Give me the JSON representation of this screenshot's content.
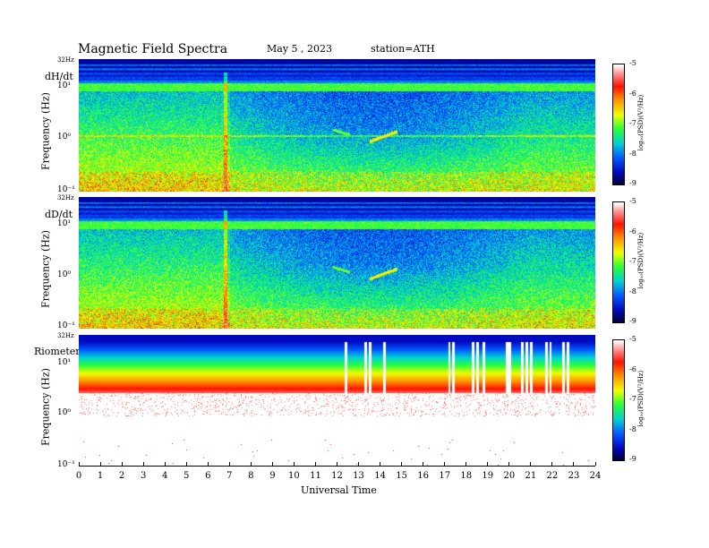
{
  "header": {
    "title": "Magnetic  Field  Spectra",
    "date": "May 5  , 2023",
    "station": "station=ATH"
  },
  "xaxis": {
    "label": "Universal  Time",
    "ticks": [
      "0",
      "1",
      "2",
      "3",
      "4",
      "5",
      "6",
      "7",
      "8",
      "9",
      "10",
      "11",
      "12",
      "13",
      "14",
      "15",
      "16",
      "17",
      "18",
      "19",
      "20",
      "21",
      "22",
      "23",
      "24"
    ]
  },
  "panels": [
    {
      "id": "dhdt",
      "label": "dH/dt",
      "ylabel": "Frequency  (Hz)",
      "top_tick": "32Hz",
      "yticks": [
        "10¹",
        "10⁰",
        "10⁻¹"
      ]
    },
    {
      "id": "dddt",
      "label": "dD/dt",
      "ylabel": "Frequency  (Hz)",
      "top_tick": "32Hz",
      "yticks": [
        "10¹",
        "10⁰",
        "10⁻¹"
      ]
    },
    {
      "id": "riometer",
      "label": "Riometer",
      "ylabel": "Frequency  (Hz)",
      "top_tick": "32Hz",
      "yticks": [
        "10¹",
        "10⁰",
        "10⁻¹"
      ]
    }
  ],
  "colorbar": {
    "label": "log₁₀(PSD)(V²/Hz)",
    "ticks": [
      "-5",
      "-6",
      "-7",
      "-8",
      "-9"
    ],
    "colors": [
      "#ffffff",
      "#ff2000",
      "#ffa000",
      "#f0ff00",
      "#30ff30",
      "#00d8c0",
      "#0060ff",
      "#0010c0",
      "#000040"
    ]
  },
  "chart_data": {
    "type": "heatmap",
    "title": "Magnetic  Field  Spectra",
    "xlabel": "Universal  Time",
    "ylabel": "Frequency  (Hz)",
    "xlim": [
      0,
      24
    ],
    "ylim_hz": [
      0.1,
      32
    ],
    "yscale": "log",
    "colorbar_range": [
      -9,
      -5
    ],
    "panels": [
      "dH/dt",
      "dD/dt",
      "Riometer"
    ]
  }
}
